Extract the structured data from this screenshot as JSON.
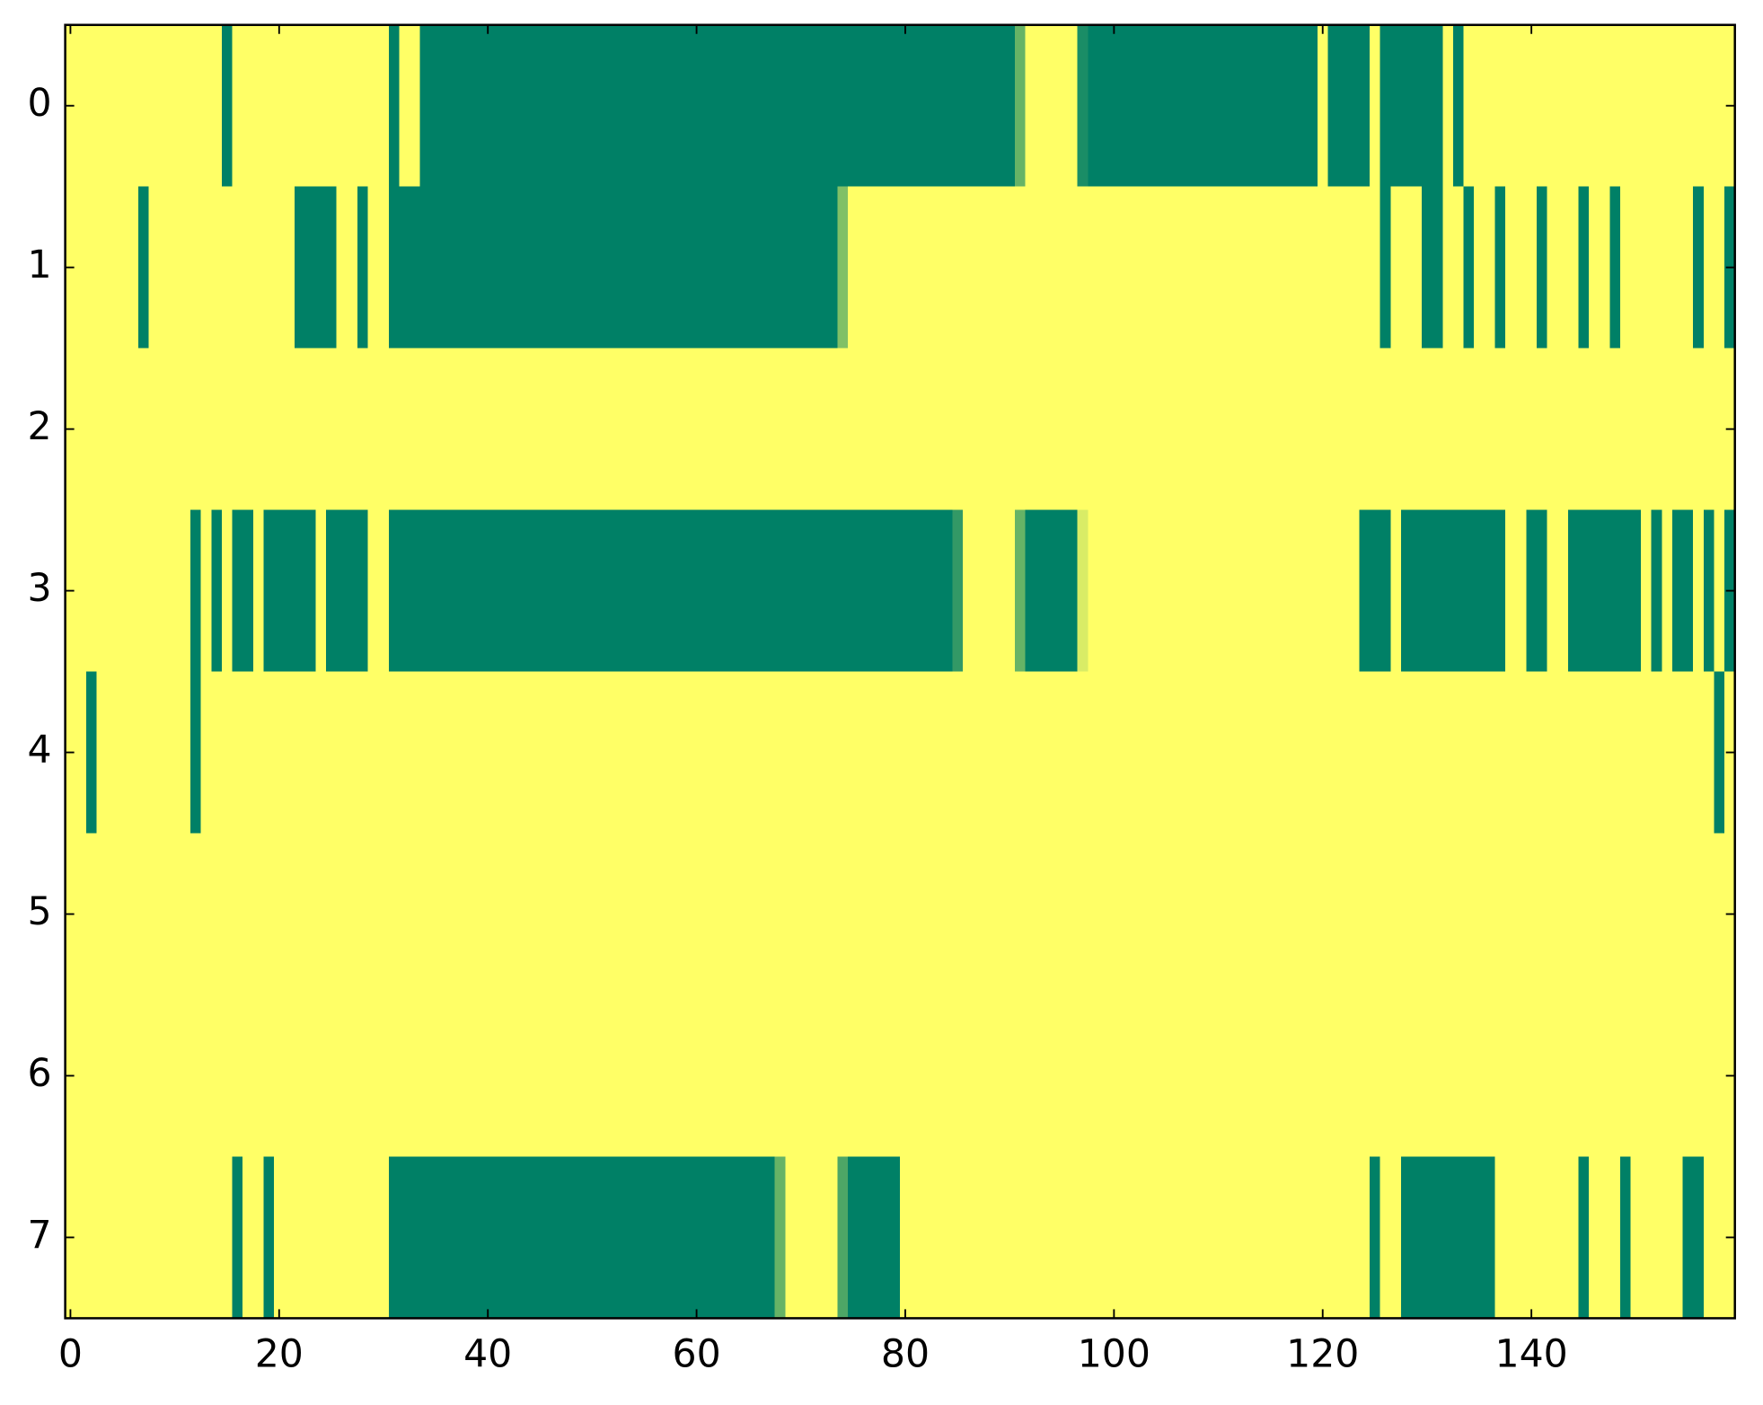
{
  "chart_data": {
    "type": "heatmap",
    "colors": [
      "#008066",
      "#ffff66"
    ],
    "vlim": [
      0,
      1
    ],
    "xlim": [
      -0.5,
      159.5
    ],
    "ylim": [
      7.5,
      -0.5
    ],
    "xticks": [
      0,
      20,
      40,
      60,
      80,
      100,
      120,
      140
    ],
    "yticks": [
      0,
      1,
      2,
      3,
      4,
      5,
      6,
      7
    ],
    "z": [
      [
        1,
        1,
        1,
        1,
        1,
        1,
        1,
        1,
        1,
        1,
        1,
        1,
        1,
        1,
        1,
        0,
        1,
        1,
        1,
        1,
        1,
        1,
        1,
        1,
        1,
        1,
        1,
        1,
        1,
        1,
        1,
        0,
        1,
        1,
        0,
        0,
        0,
        0,
        0,
        0,
        0,
        0,
        0,
        0,
        0,
        0,
        0,
        0,
        0,
        0,
        0,
        0,
        0,
        0,
        0,
        0,
        0,
        0,
        0,
        0,
        0,
        0,
        0,
        0,
        0,
        0,
        0,
        0,
        0,
        0,
        0,
        0,
        0,
        0,
        0,
        0,
        0,
        0,
        0,
        0,
        0,
        0,
        0,
        0,
        0,
        0,
        0,
        0,
        0,
        0,
        0,
        0.4,
        1,
        1,
        1,
        1,
        1,
        0.1,
        0,
        0,
        0,
        0,
        0,
        0,
        0,
        0,
        0,
        0,
        0,
        0,
        0,
        0,
        0,
        0,
        0,
        0,
        0,
        0,
        0,
        0,
        1,
        0,
        0,
        0,
        0,
        1,
        0,
        0,
        0,
        0,
        0,
        0,
        1,
        0,
        1,
        1,
        1,
        1,
        1,
        1,
        1,
        1,
        1,
        1,
        1,
        1,
        1,
        1,
        1,
        1,
        1,
        1,
        1,
        1,
        1,
        1,
        1,
        1,
        1,
        1
      ],
      [
        1,
        1,
        1,
        1,
        1,
        1,
        1,
        0,
        1,
        1,
        1,
        1,
        1,
        1,
        1,
        1,
        1,
        1,
        1,
        1,
        1,
        1,
        0,
        0,
        0,
        0,
        1,
        1,
        0,
        1,
        1,
        0,
        0,
        0,
        0,
        0,
        0,
        0,
        0,
        0,
        0,
        0,
        0,
        0,
        0,
        0,
        0,
        0,
        0,
        0,
        0,
        0,
        0,
        0,
        0,
        0,
        0,
        0,
        0,
        0,
        0,
        0,
        0,
        0,
        0,
        0,
        0,
        0,
        0,
        0,
        0,
        0,
        0,
        0,
        0.5,
        1,
        1,
        1,
        1,
        1,
        1,
        1,
        1,
        1,
        1,
        1,
        1,
        1,
        1,
        1,
        1,
        1,
        1,
        1,
        1,
        1,
        1,
        1,
        1,
        1,
        1,
        1,
        1,
        1,
        1,
        1,
        1,
        1,
        1,
        1,
        1,
        1,
        1,
        1,
        1,
        1,
        1,
        1,
        1,
        1,
        1,
        1,
        1,
        1,
        1,
        1,
        0,
        1,
        1,
        1,
        0,
        0,
        1,
        1,
        0,
        1,
        1,
        0,
        1,
        1,
        1,
        0,
        1,
        1,
        1,
        0,
        1,
        1,
        0,
        1,
        1,
        1,
        1,
        1,
        1,
        1,
        0,
        1,
        1,
        0
      ],
      [
        1,
        1,
        1,
        1,
        1,
        1,
        1,
        1,
        1,
        1,
        1,
        1,
        1,
        1,
        1,
        1,
        1,
        1,
        1,
        1,
        1,
        1,
        1,
        1,
        1,
        1,
        1,
        1,
        1,
        1,
        1,
        1,
        1,
        1,
        1,
        1,
        1,
        1,
        1,
        1,
        1,
        1,
        1,
        1,
        1,
        1,
        1,
        1,
        1,
        1,
        1,
        1,
        1,
        1,
        1,
        1,
        1,
        1,
        1,
        1,
        1,
        1,
        1,
        1,
        1,
        1,
        1,
        1,
        1,
        1,
        1,
        1,
        1,
        1,
        1,
        1,
        1,
        1,
        1,
        1,
        1,
        1,
        1,
        1,
        1,
        1,
        1,
        1,
        1,
        1,
        1,
        1,
        1,
        1,
        1,
        1,
        1,
        1,
        1,
        1,
        1,
        1,
        1,
        1,
        1,
        1,
        1,
        1,
        1,
        1,
        1,
        1,
        1,
        1,
        1,
        1,
        1,
        1,
        1,
        1,
        1,
        1,
        1,
        1,
        1,
        1,
        1,
        1,
        1,
        1,
        1,
        1,
        1,
        1,
        1,
        1,
        1,
        1,
        1,
        1,
        1,
        1,
        1,
        1,
        1,
        1,
        1,
        1,
        1,
        1,
        1,
        1,
        1,
        1,
        1,
        1,
        1,
        1,
        1,
        1
      ],
      [
        1,
        1,
        1,
        1,
        1,
        1,
        1,
        1,
        1,
        1,
        1,
        1,
        0,
        1,
        0,
        1,
        0,
        0,
        1,
        0,
        0,
        0,
        0,
        0,
        1,
        0,
        0,
        0,
        0,
        1,
        1,
        0,
        0,
        0,
        0,
        0,
        0,
        0,
        0,
        0,
        0,
        0,
        0,
        0,
        0,
        0,
        0,
        0,
        0,
        0,
        0,
        0,
        0,
        0,
        0,
        0,
        0,
        0,
        0,
        0,
        0,
        0,
        0,
        0,
        0,
        0,
        0,
        0,
        0,
        0,
        0,
        0,
        0,
        0,
        0,
        0,
        0,
        0,
        0,
        0,
        0,
        0,
        0,
        0,
        0,
        0.2,
        1,
        1,
        1,
        1,
        1,
        0.4,
        0,
        0,
        0,
        0,
        0,
        0.85,
        1,
        1,
        1,
        1,
        1,
        1,
        1,
        1,
        1,
        1,
        1,
        1,
        1,
        1,
        1,
        1,
        1,
        1,
        1,
        1,
        1,
        1,
        1,
        1,
        1,
        1,
        0,
        0,
        0,
        1,
        0,
        0,
        0,
        0,
        0,
        0,
        0,
        0,
        0,
        0,
        1,
        1,
        0,
        0,
        1,
        1,
        0,
        0,
        0,
        0,
        0,
        0,
        0,
        1,
        0,
        1,
        0,
        0,
        1,
        0,
        1,
        0
      ],
      [
        1,
        1,
        0,
        1,
        1,
        1,
        1,
        1,
        1,
        1,
        1,
        1,
        0,
        1,
        1,
        1,
        1,
        1,
        1,
        1,
        1,
        1,
        1,
        1,
        1,
        1,
        1,
        1,
        1,
        1,
        1,
        1,
        1,
        1,
        1,
        1,
        1,
        1,
        1,
        1,
        1,
        1,
        1,
        1,
        1,
        1,
        1,
        1,
        1,
        1,
        1,
        1,
        1,
        1,
        1,
        1,
        1,
        1,
        1,
        1,
        1,
        1,
        1,
        1,
        1,
        1,
        1,
        1,
        1,
        1,
        1,
        1,
        1,
        1,
        1,
        1,
        1,
        1,
        1,
        1,
        1,
        1,
        1,
        1,
        1,
        1,
        1,
        1,
        1,
        1,
        1,
        1,
        1,
        1,
        1,
        1,
        1,
        1,
        1,
        1,
        1,
        1,
        1,
        1,
        1,
        1,
        1,
        1,
        1,
        1,
        1,
        1,
        1,
        1,
        1,
        1,
        1,
        1,
        1,
        1,
        1,
        1,
        1,
        1,
        1,
        1,
        1,
        1,
        1,
        1,
        1,
        1,
        1,
        1,
        1,
        1,
        1,
        1,
        1,
        1,
        1,
        1,
        1,
        1,
        1,
        1,
        1,
        1,
        1,
        1,
        1,
        1,
        1,
        1,
        1,
        1,
        1,
        1,
        0,
        1
      ],
      [
        1,
        1,
        1,
        1,
        1,
        1,
        1,
        1,
        1,
        1,
        1,
        1,
        1,
        1,
        1,
        1,
        1,
        1,
        1,
        1,
        1,
        1,
        1,
        1,
        1,
        1,
        1,
        1,
        1,
        1,
        1,
        1,
        1,
        1,
        1,
        1,
        1,
        1,
        1,
        1,
        1,
        1,
        1,
        1,
        1,
        1,
        1,
        1,
        1,
        1,
        1,
        1,
        1,
        1,
        1,
        1,
        1,
        1,
        1,
        1,
        1,
        1,
        1,
        1,
        1,
        1,
        1,
        1,
        1,
        1,
        1,
        1,
        1,
        1,
        1,
        1,
        1,
        1,
        1,
        1,
        1,
        1,
        1,
        1,
        1,
        1,
        1,
        1,
        1,
        1,
        1,
        1,
        1,
        1,
        1,
        1,
        1,
        1,
        1,
        1,
        1,
        1,
        1,
        1,
        1,
        1,
        1,
        1,
        1,
        1,
        1,
        1,
        1,
        1,
        1,
        1,
        1,
        1,
        1,
        1,
        1,
        1,
        1,
        1,
        1,
        1,
        1,
        1,
        1,
        1,
        1,
        1,
        1,
        1,
        1,
        1,
        1,
        1,
        1,
        1,
        1,
        1,
        1,
        1,
        1,
        1,
        1,
        1,
        1,
        1,
        1,
        1,
        1,
        1,
        1,
        1,
        1,
        1,
        1,
        1
      ],
      [
        1,
        1,
        1,
        1,
        1,
        1,
        1,
        1,
        1,
        1,
        1,
        1,
        1,
        1,
        1,
        1,
        1,
        1,
        1,
        1,
        1,
        1,
        1,
        1,
        1,
        1,
        1,
        1,
        1,
        1,
        1,
        1,
        1,
        1,
        1,
        1,
        1,
        1,
        1,
        1,
        1,
        1,
        1,
        1,
        1,
        1,
        1,
        1,
        1,
        1,
        1,
        1,
        1,
        1,
        1,
        1,
        1,
        1,
        1,
        1,
        1,
        1,
        1,
        1,
        1,
        1,
        1,
        1,
        1,
        1,
        1,
        1,
        1,
        1,
        1,
        1,
        1,
        1,
        1,
        1,
        1,
        1,
        1,
        1,
        1,
        1,
        1,
        1,
        1,
        1,
        1,
        1,
        1,
        1,
        1,
        1,
        1,
        1,
        1,
        1,
        1,
        1,
        1,
        1,
        1,
        1,
        1,
        1,
        1,
        1,
        1,
        1,
        1,
        1,
        1,
        1,
        1,
        1,
        1,
        1,
        1,
        1,
        1,
        1,
        1,
        1,
        1,
        1,
        1,
        1,
        1,
        1,
        1,
        1,
        1,
        1,
        1,
        1,
        1,
        1,
        1,
        1,
        1,
        1,
        1,
        1,
        1,
        1,
        1,
        1,
        1,
        1,
        1,
        1,
        1,
        1,
        1,
        1,
        1,
        1
      ],
      [
        1,
        1,
        1,
        1,
        1,
        1,
        1,
        1,
        1,
        1,
        1,
        1,
        1,
        1,
        1,
        1,
        0,
        1,
        1,
        0,
        1,
        1,
        1,
        1,
        1,
        1,
        1,
        1,
        1,
        1,
        1,
        0,
        0,
        0,
        0,
        0,
        0,
        0,
        0,
        0,
        0,
        0,
        0,
        0,
        0,
        0,
        0,
        0,
        0,
        0,
        0,
        0,
        0,
        0,
        0,
        0,
        0,
        0,
        0,
        0,
        0,
        0,
        0,
        0,
        0,
        0,
        0,
        0,
        0.4,
        1,
        1,
        1,
        1,
        1,
        0.3,
        0,
        0,
        0,
        0,
        0,
        1,
        1,
        1,
        1,
        1,
        1,
        1,
        1,
        1,
        1,
        1,
        1,
        1,
        1,
        1,
        1,
        1,
        1,
        1,
        1,
        1,
        1,
        1,
        1,
        1,
        1,
        1,
        1,
        1,
        1,
        1,
        1,
        1,
        1,
        1,
        1,
        1,
        1,
        1,
        1,
        1,
        1,
        1,
        1,
        1,
        0,
        1,
        1,
        0,
        0,
        0,
        0,
        0,
        0,
        0,
        0,
        0,
        1,
        1,
        1,
        1,
        1,
        1,
        1,
        1,
        0,
        1,
        1,
        1,
        0,
        1,
        1,
        1,
        1,
        1,
        0,
        0,
        1,
        1,
        1
      ]
    ]
  }
}
